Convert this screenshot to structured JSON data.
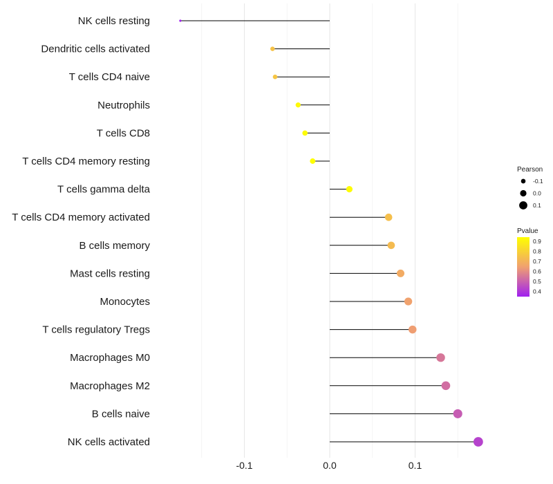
{
  "chart_data": {
    "type": "lollipop",
    "categories": [
      "NK cells resting",
      "Dendritic cells activated",
      "T cells CD4 naive",
      "Neutrophils",
      "T cells CD8",
      "T cells CD4 memory resting",
      "T cells gamma delta",
      "T cells CD4 memory activated",
      "B cells memory",
      "Mast cells resting",
      "Monocytes",
      "T cells regulatory  Tregs",
      "Macrophages M0",
      "Macrophages M2",
      "B cells naive",
      "NK cells activated"
    ],
    "values": [
      -0.175,
      -0.067,
      -0.064,
      -0.037,
      -0.029,
      -0.02,
      0.023,
      0.069,
      0.072,
      0.083,
      0.092,
      0.097,
      0.13,
      0.136,
      0.15,
      0.174
    ],
    "pvalues": [
      0.35,
      0.75,
      0.76,
      0.92,
      0.93,
      0.94,
      0.93,
      0.74,
      0.73,
      0.68,
      0.65,
      0.64,
      0.55,
      0.53,
      0.49,
      0.43
    ],
    "xlabel": "",
    "ylabel": "",
    "xlim": [
      -0.2,
      0.2
    ],
    "xticks": [
      {
        "value": -0.1,
        "label": "-0.1"
      },
      {
        "value": 0.0,
        "label": "0.0"
      },
      {
        "value": 0.1,
        "label": "0.1"
      }
    ],
    "grid": true,
    "legend": {
      "position": "right",
      "size_title": "Pearson",
      "size_items": [
        {
          "value": -0.1,
          "label": "-0.1"
        },
        {
          "value": 0.0,
          "label": "0.0"
        },
        {
          "value": 0.1,
          "label": "0.1"
        }
      ],
      "color_title": "Pvalue",
      "color_ticks": [
        {
          "value": 0.9,
          "label": "0.9"
        },
        {
          "value": 0.8,
          "label": "0.8"
        },
        {
          "value": 0.7,
          "label": "0.7"
        },
        {
          "value": 0.6,
          "label": "0.6"
        },
        {
          "value": 0.5,
          "label": "0.5"
        },
        {
          "value": 0.4,
          "label": "0.4"
        }
      ],
      "color_range": [
        0.35,
        0.94
      ],
      "color_low": "#A020F0",
      "color_mid": "#F0A070",
      "color_high": "#FFFF00"
    },
    "colors": {
      "stem": "#000000",
      "grid_major": "#e6e6e6",
      "grid_minor": "#f2f2f2"
    }
  }
}
